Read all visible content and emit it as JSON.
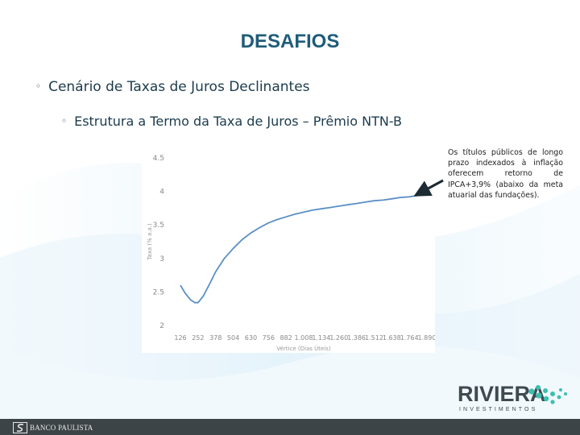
{
  "slide": {
    "title": "DESAFIOS",
    "bullet_level1": "Cenário de Taxas de Juros Declinantes",
    "bullet_level2": "Estrutura a Termo da Taxa de Juros – Prêmio NTN-B",
    "bullet_marker": "◦"
  },
  "note": {
    "text": "Os títulos públicos de longo prazo indexados à inflação oferecem retorno de IPCA+3,9% (abaixo da meta atuarial das fundações)."
  },
  "logo": {
    "word": "RIVIERA",
    "sub": "INVESTIMENTOS"
  },
  "footer": {
    "brand": "BANCO PAULISTA"
  },
  "colors": {
    "title": "#1f5c7a",
    "curve": "#5b8fc6",
    "logo_dots": "#3bbfb0",
    "footer_bg": "#3d4447"
  },
  "chart_data": {
    "type": "line",
    "title": "",
    "xlabel": "Vértice (Dias Úteis)",
    "ylabel": "Taxa (% a.a.)",
    "ylim": [
      2,
      4.5
    ],
    "yticks": [
      "2",
      "2.5",
      "3",
      "3.5",
      "4",
      "4.5"
    ],
    "xticks": [
      "126",
      "252",
      "378",
      "504",
      "630",
      "756",
      "882",
      "1.008",
      "1.134",
      "1.260",
      "1.386",
      "1.512",
      "1.638",
      "1.764",
      "1.890"
    ],
    "series": [
      {
        "x": [
          126,
          160,
          200,
          230,
          252,
          290,
          330,
          378,
          440,
          504,
          567,
          630,
          693,
          756,
          819,
          882,
          945,
          1008,
          1071,
          1134,
          1197,
          1260,
          1323,
          1386,
          1449,
          1512,
          1575,
          1638,
          1701,
          1764,
          1827,
          1890
        ],
        "values": [
          2.6,
          2.48,
          2.38,
          2.34,
          2.34,
          2.44,
          2.6,
          2.8,
          3.0,
          3.15,
          3.28,
          3.38,
          3.46,
          3.53,
          3.58,
          3.62,
          3.66,
          3.69,
          3.72,
          3.74,
          3.76,
          3.78,
          3.8,
          3.82,
          3.84,
          3.86,
          3.87,
          3.89,
          3.91,
          3.92,
          3.94,
          3.96
        ]
      }
    ]
  }
}
